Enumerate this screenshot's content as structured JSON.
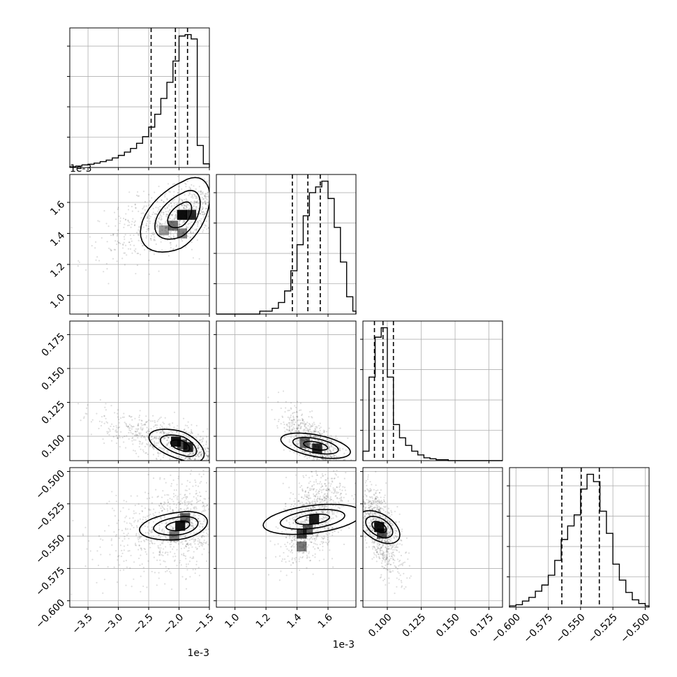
{
  "chart_data": {
    "type": "corner",
    "n_params": 4,
    "grid": true,
    "scales": [
      "1e-3",
      "1e-3",
      "",
      ""
    ],
    "params": [
      {
        "range": [
          -3.8,
          -1.5
        ],
        "ticks": [
          -3.5,
          -3.0,
          -2.5,
          -2.0,
          -1.5
        ],
        "tick_labels": [
          "−3.5",
          "−3.0",
          "−2.5",
          "−2.0",
          "−1.5"
        ],
        "quantiles": [
          -2.46,
          -2.06,
          -1.86
        ],
        "hist": {
          "edges": [
            -3.8,
            -3.7,
            -3.6,
            -3.5,
            -3.4,
            -3.3,
            -3.2,
            -3.1,
            -3.0,
            -2.9,
            -2.8,
            -2.7,
            -2.6,
            -2.5,
            -2.4,
            -2.3,
            -2.2,
            -2.1,
            -2.0,
            -1.9,
            -1.8,
            -1.7,
            -1.6,
            -1.5
          ],
          "counts": [
            2,
            4,
            7,
            9,
            12,
            16,
            20,
            26,
            33,
            42,
            52,
            66,
            84,
            110,
            145,
            188,
            232,
            290,
            358,
            362,
            350,
            60,
            10
          ]
        }
      },
      {
        "range": [
          0.88,
          1.78
        ],
        "ticks": [
          1.0,
          1.2,
          1.4,
          1.6
        ],
        "tick_labels": [
          "1.0",
          "1.2",
          "1.4",
          "1.6"
        ],
        "quantiles": [
          1.37,
          1.47,
          1.55
        ],
        "hist": {
          "edges": [
            0.88,
            0.92,
            0.96,
            1.0,
            1.04,
            1.08,
            1.12,
            1.16,
            1.2,
            1.24,
            1.28,
            1.32,
            1.36,
            1.4,
            1.44,
            1.48,
            1.52,
            1.56,
            1.6,
            1.64,
            1.68,
            1.72,
            1.76,
            1.78
          ],
          "counts": [
            0,
            0,
            0,
            0,
            0,
            0,
            0,
            1,
            1,
            2,
            4,
            8,
            15,
            24,
            34,
            42,
            44,
            46,
            40,
            30,
            18,
            6,
            1
          ]
        }
      },
      {
        "range": [
          0.082,
          0.185
        ],
        "ticks": [
          0.1,
          0.125,
          0.15,
          0.175
        ],
        "tick_labels": [
          "0.100",
          "0.125",
          "0.150",
          "0.175"
        ],
        "quantiles": [
          0.0905,
          0.0968,
          0.1045
        ],
        "hist": {
          "edges": [
            0.082,
            0.0865,
            0.091,
            0.0955,
            0.1,
            0.1045,
            0.109,
            0.1135,
            0.118,
            0.1225,
            0.127,
            0.1315,
            0.136,
            0.1405,
            0.145,
            0.1495,
            0.154,
            0.1585,
            0.163,
            0.1675,
            0.172,
            0.1765,
            0.181,
            0.185
          ],
          "counts": [
            10,
            88,
            130,
            140,
            88,
            38,
            24,
            16,
            10,
            6,
            3,
            2,
            1,
            1,
            0,
            0,
            0,
            0,
            0,
            0,
            0,
            0,
            0
          ]
        }
      },
      {
        "range": [
          -0.605,
          -0.497
        ],
        "ticks": [
          -0.6,
          -0.575,
          -0.55,
          -0.525,
          -0.5
        ],
        "tick_labels": [
          "−0.600",
          "−0.575",
          "−0.550",
          "−0.525",
          "−0.500"
        ],
        "quantiles": [
          -0.5645,
          -0.5495,
          -0.5355
        ],
        "hist": {
          "edges": [
            -0.605,
            -0.6,
            -0.595,
            -0.59,
            -0.585,
            -0.58,
            -0.575,
            -0.57,
            -0.565,
            -0.56,
            -0.555,
            -0.55,
            -0.545,
            -0.54,
            -0.535,
            -0.53,
            -0.525,
            -0.52,
            -0.515,
            -0.51,
            -0.505,
            -0.5,
            -0.497
          ],
          "counts": [
            1,
            2,
            5,
            8,
            13,
            18,
            26,
            38,
            55,
            66,
            75,
            96,
            108,
            102,
            78,
            60,
            35,
            22,
            12,
            6,
            3,
            1
          ]
        }
      }
    ],
    "pairs": [
      {
        "x": 0,
        "y": 1,
        "mode": [
          -1.95,
          1.52
        ],
        "corr": 0.62,
        "sx": 0.4,
        "sy": 0.13,
        "hx": 0.12,
        "hy": 0.085,
        "skew": 1,
        "density_cells": [
          [
            -1.95,
            1.52,
            1.0
          ],
          [
            -1.8,
            1.52,
            0.85
          ],
          [
            -2.1,
            1.45,
            0.45
          ],
          [
            -1.95,
            1.4,
            0.35
          ],
          [
            -2.25,
            1.42,
            0.2
          ]
        ]
      },
      {
        "x": 0,
        "y": 2,
        "mode": [
          -1.95,
          0.093
        ],
        "corr": -0.82,
        "sx": 0.45,
        "sy": 0.012,
        "hx": 0.1,
        "hy": 0.004,
        "skew": 1,
        "density_cells": [
          [
            -2.05,
            0.096,
            0.95
          ],
          [
            -1.85,
            0.092,
            0.85
          ],
          [
            -1.95,
            0.094,
            0.6
          ]
        ]
      },
      {
        "x": 0,
        "y": 3,
        "mode": [
          -1.98,
          -0.542
        ],
        "corr": 0.28,
        "sx": 0.4,
        "sy": 0.018,
        "hx": 0.11,
        "hy": 0.0045,
        "skew": 1,
        "density_cells": [
          [
            -1.98,
            -0.542,
            0.95
          ],
          [
            -1.9,
            -0.536,
            0.55
          ],
          [
            -2.08,
            -0.55,
            0.4
          ]
        ]
      },
      {
        "x": 1,
        "y": 2,
        "mode": [
          1.52,
          0.093
        ],
        "corr": -0.7,
        "sx": 0.1,
        "sy": 0.012,
        "hx": 0.06,
        "hy": 0.0032,
        "skew": 0,
        "density_cells": [
          [
            1.53,
            0.091,
            0.85
          ],
          [
            1.45,
            0.095,
            0.45
          ]
        ]
      },
      {
        "x": 1,
        "y": 3,
        "mode": [
          1.5,
          -0.537
        ],
        "corr": 0.42,
        "sx": 0.1,
        "sy": 0.017,
        "hx": 0.08,
        "hy": 0.0045,
        "skew": 0,
        "density_cells": [
          [
            1.51,
            -0.537,
            0.9
          ],
          [
            1.43,
            -0.548,
            0.7
          ],
          [
            1.43,
            -0.558,
            0.4
          ],
          [
            1.47,
            -0.545,
            0.55
          ]
        ]
      },
      {
        "x": 2,
        "y": 3,
        "mode": [
          0.094,
          -0.543
        ],
        "corr": -0.62,
        "sx": 0.008,
        "sy": 0.017,
        "hx": 0.004,
        "hy": 0.0045,
        "skew": 0,
        "density_cells": [
          [
            0.094,
            -0.543,
            0.95
          ],
          [
            0.096,
            -0.548,
            0.6
          ]
        ]
      }
    ]
  }
}
